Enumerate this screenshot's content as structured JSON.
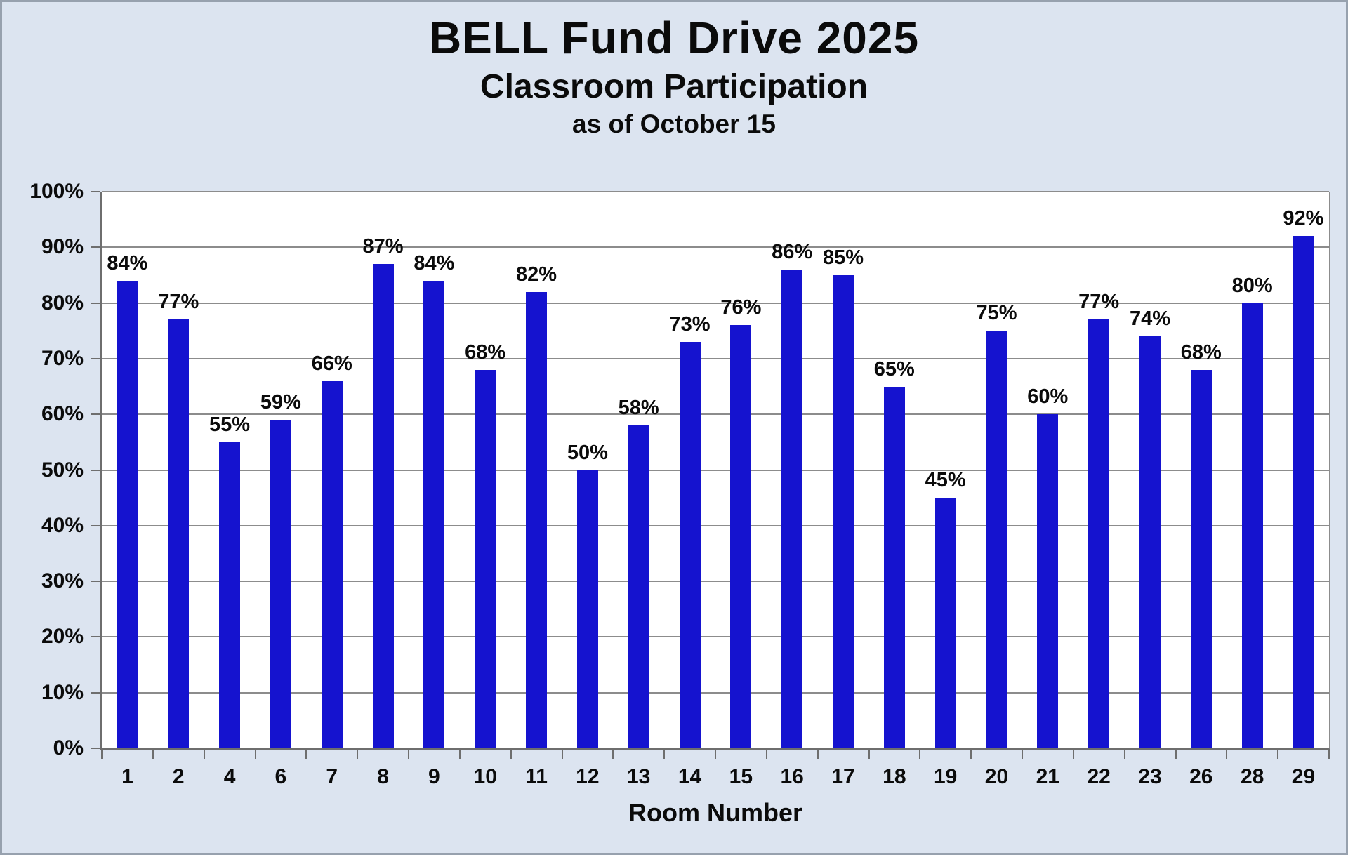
{
  "page": {
    "background": "#dce4f0",
    "border_color": "#97a1ae"
  },
  "header": {
    "title": "BELL Fund Drive 2025",
    "subtitle": "Classroom Participation",
    "as_of": "as of October 15"
  },
  "chart_data": {
    "type": "bar",
    "title": "BELL Fund Drive 2025",
    "subtitle": "Classroom Participation",
    "annotation": "as of October 15",
    "xlabel": "Room Number",
    "ylabel": "",
    "categories": [
      "1",
      "2",
      "4",
      "6",
      "7",
      "8",
      "9",
      "10",
      "11",
      "12",
      "13",
      "14",
      "15",
      "16",
      "17",
      "18",
      "19",
      "20",
      "21",
      "22",
      "23",
      "26",
      "28",
      "29"
    ],
    "values": [
      84,
      77,
      55,
      59,
      66,
      87,
      84,
      68,
      82,
      50,
      58,
      73,
      76,
      86,
      85,
      65,
      45,
      75,
      60,
      77,
      74,
      68,
      80,
      92
    ],
    "value_labels": [
      "84%",
      "77%",
      "55%",
      "59%",
      "66%",
      "87%",
      "84%",
      "68%",
      "82%",
      "50%",
      "58%",
      "73%",
      "76%",
      "86%",
      "85%",
      "65%",
      "45%",
      "75%",
      "60%",
      "77%",
      "74%",
      "68%",
      "80%",
      "92%"
    ],
    "ylim": [
      0,
      100
    ],
    "ytick_step": 10,
    "ytick_labels": [
      "0%",
      "10%",
      "20%",
      "30%",
      "40%",
      "50%",
      "60%",
      "70%",
      "80%",
      "90%",
      "100%"
    ],
    "grid": true,
    "legend_position": "none",
    "bar_color": "#1513cf",
    "plot_background": "#ffffff",
    "gridline_color": "#8c8c8c",
    "axis_color": "#6e6e6e",
    "text_color": "#0b0b0b"
  }
}
